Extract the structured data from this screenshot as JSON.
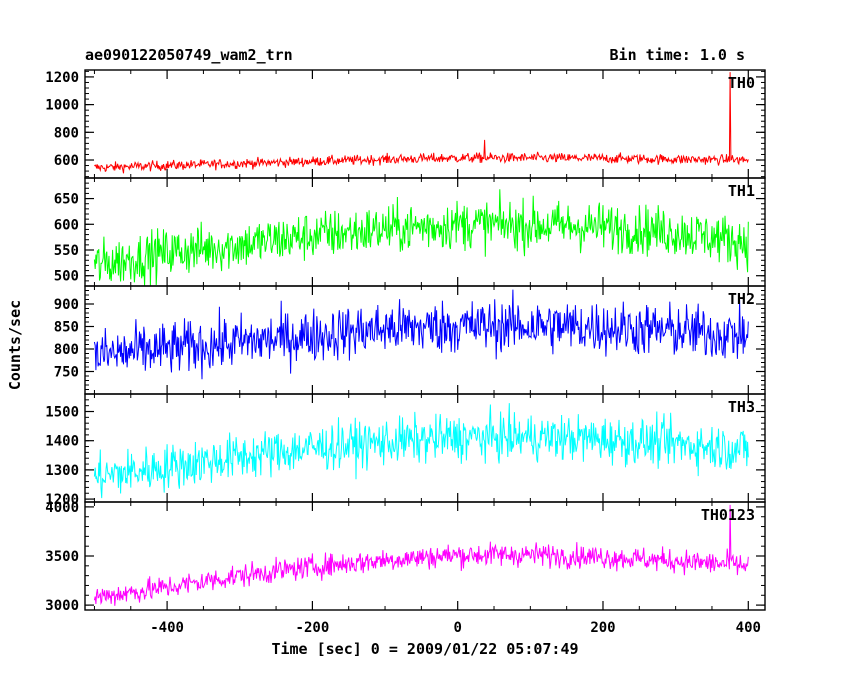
{
  "header": {
    "title": "ae090122050749_wam2_trn",
    "bin_time": "Bin time: 1.0 s"
  },
  "axes": {
    "ylabel": "Counts/sec",
    "xlabel": "Time [sec] 0 = 2009/01/22 05:07:49"
  },
  "chart_data": {
    "type": "line",
    "title": "ae090122050749_wam2_trn",
    "xlabel": "Time [sec] 0 = 2009/01/22 05:07:49",
    "ylabel": "Counts/sec",
    "xlim": [
      -513,
      423
    ],
    "xticks": [
      -400,
      -200,
      0,
      200,
      400
    ],
    "x_start": -500,
    "x_end": 400,
    "bin_time_s": 1.0,
    "grid": false,
    "panels": [
      {
        "name": "TH0",
        "color": "#ff0000",
        "ylim": [
          470,
          1250
        ],
        "yticks": [
          600,
          800,
          1000,
          1200
        ],
        "trend_x": [
          -500,
          -400,
          -300,
          -200,
          -100,
          0,
          100,
          200,
          300,
          400
        ],
        "trend_y": [
          545,
          560,
          575,
          590,
          605,
          615,
          615,
          612,
          605,
          600
        ],
        "noise": 18,
        "spikes": [
          {
            "x": 375,
            "y": 1235
          },
          {
            "x": 37,
            "y": 745
          }
        ]
      },
      {
        "name": "TH1",
        "color": "#00ff00",
        "ylim": [
          480,
          690
        ],
        "yticks": [
          500,
          550,
          600,
          650
        ],
        "trend_x": [
          -500,
          -400,
          -300,
          -200,
          -100,
          0,
          100,
          200,
          300,
          400
        ],
        "trend_y": [
          520,
          545,
          560,
          578,
          590,
          600,
          598,
          595,
          585,
          565
        ],
        "noise": 24,
        "spikes": []
      },
      {
        "name": "TH2",
        "color": "#0000ff",
        "ylim": [
          700,
          940
        ],
        "yticks": [
          750,
          800,
          850,
          900
        ],
        "trend_x": [
          -500,
          -400,
          -300,
          -200,
          -100,
          0,
          100,
          200,
          300,
          400
        ],
        "trend_y": [
          785,
          800,
          815,
          830,
          845,
          850,
          852,
          848,
          840,
          830
        ],
        "noise": 30,
        "spikes": []
      },
      {
        "name": "TH3",
        "color": "#00ffff",
        "ylim": [
          1190,
          1560
        ],
        "yticks": [
          1200,
          1300,
          1400,
          1500
        ],
        "trend_x": [
          -500,
          -400,
          -300,
          -200,
          -100,
          0,
          100,
          200,
          300,
          400
        ],
        "trend_y": [
          1275,
          1310,
          1345,
          1375,
          1395,
          1410,
          1412,
          1405,
          1390,
          1370
        ],
        "noise": 40,
        "spikes": []
      },
      {
        "name": "TH0123",
        "color": "#ff00ff",
        "ylim": [
          2950,
          4050
        ],
        "yticks": [
          3000,
          3500,
          4000
        ],
        "trend_x": [
          -500,
          -400,
          -300,
          -200,
          -100,
          0,
          100,
          200,
          300,
          400
        ],
        "trend_y": [
          3080,
          3180,
          3300,
          3390,
          3460,
          3510,
          3515,
          3490,
          3450,
          3400
        ],
        "noise": 60,
        "spikes": [
          {
            "x": 375,
            "y": 4020
          }
        ]
      }
    ]
  }
}
